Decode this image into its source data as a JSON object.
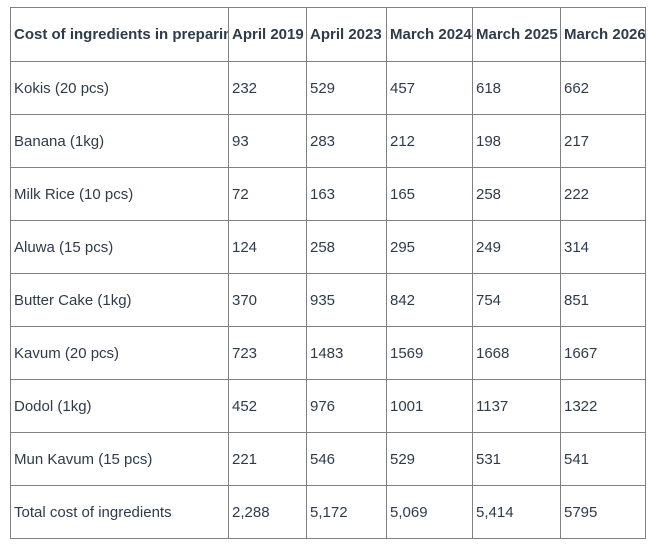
{
  "chart_data": {
    "type": "table",
    "title": "Cost of ingredients in preparing",
    "columns": [
      "Cost of ingredients in preparing",
      "April 2019",
      "April 2023",
      "March 2024",
      "March 2025",
      "March 2026"
    ],
    "categories": [
      "April 2019",
      "April 2023",
      "March 2024",
      "March 2025",
      "March 2026"
    ],
    "rows": [
      {
        "label": "Kokis (20 pcs)",
        "values": [
          "232",
          "529",
          "457",
          "618",
          "662"
        ]
      },
      {
        "label": "Banana (1kg)",
        "values": [
          "93",
          "283",
          "212",
          "198",
          "217"
        ]
      },
      {
        "label": "Milk Rice (10 pcs)",
        "values": [
          "72",
          "163",
          "165",
          "258",
          "222"
        ]
      },
      {
        "label": "Aluwa (15 pcs)",
        "values": [
          "124",
          "258",
          "295",
          "249",
          "314"
        ]
      },
      {
        "label": "Butter Cake (1kg)",
        "values": [
          "370",
          "935",
          "842",
          "754",
          "851"
        ]
      },
      {
        "label": "Kavum (20 pcs)",
        "values": [
          "723",
          "1483",
          "1569",
          "1668",
          "1667"
        ]
      },
      {
        "label": "Dodol (1kg)",
        "values": [
          "452",
          "976",
          "1001",
          "1137",
          "1322"
        ]
      },
      {
        "label": "Mun Kavum (15 pcs)",
        "values": [
          "221",
          "546",
          "529",
          "531",
          "541"
        ]
      },
      {
        "label": "Total cost of ingredients",
        "values": [
          "2,288",
          "5,172",
          "5,069",
          "5,414",
          "5795"
        ]
      }
    ],
    "series": [
      {
        "name": "Kokis (20 pcs)",
        "values": [
          232,
          529,
          457,
          618,
          662
        ]
      },
      {
        "name": "Banana (1kg)",
        "values": [
          93,
          283,
          212,
          198,
          217
        ]
      },
      {
        "name": "Milk Rice (10 pcs)",
        "values": [
          72,
          163,
          165,
          258,
          222
        ]
      },
      {
        "name": "Aluwa (15 pcs)",
        "values": [
          124,
          258,
          295,
          249,
          314
        ]
      },
      {
        "name": "Butter Cake (1kg)",
        "values": [
          370,
          935,
          842,
          754,
          851
        ]
      },
      {
        "name": "Kavum (20 pcs)",
        "values": [
          723,
          1483,
          1569,
          1668,
          1667
        ]
      },
      {
        "name": "Dodol (1kg)",
        "values": [
          452,
          976,
          1001,
          1137,
          1322
        ]
      },
      {
        "name": "Mun Kavum (15 pcs)",
        "values": [
          221,
          546,
          529,
          531,
          541
        ]
      },
      {
        "name": "Total cost of ingredients",
        "values": [
          2288,
          5172,
          5069,
          5414,
          5795
        ]
      }
    ],
    "colors": {
      "text": "#2d3b4a",
      "border": "#808080",
      "background": "#ffffff"
    }
  }
}
